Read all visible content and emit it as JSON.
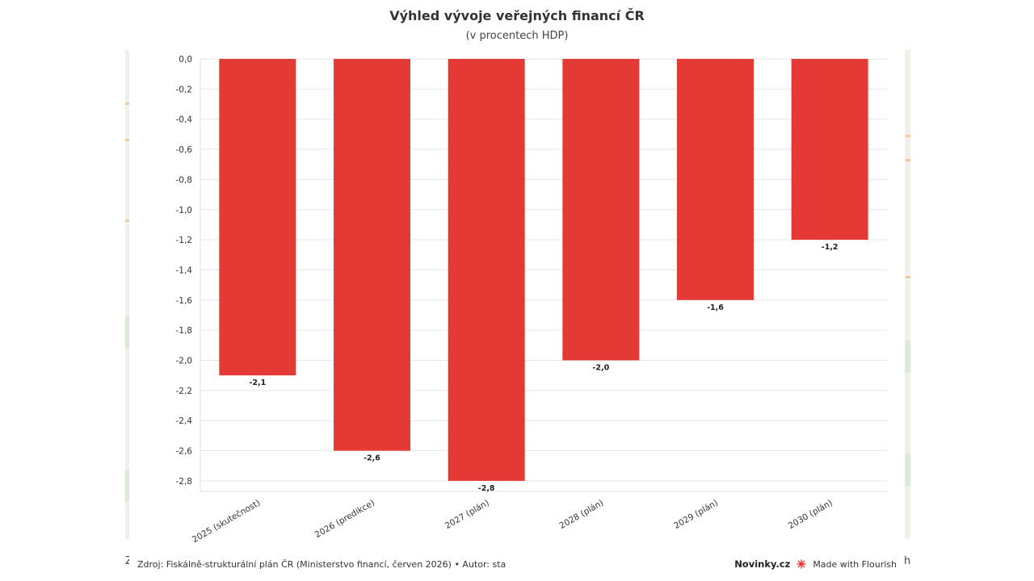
{
  "chart_data": {
    "type": "bar",
    "title": "Výhled vývoje veřejných financí ČR",
    "subtitle": "(v procentech HDP)",
    "categories": [
      "2025 (skutečnost)",
      "2026 (predikce)",
      "2027 (plán)",
      "2028 (plán)",
      "2029 (plán)",
      "2030 (plán)"
    ],
    "values": [
      -2.1,
      -2.6,
      -2.8,
      -2.0,
      -1.6,
      -1.2
    ],
    "data_labels": [
      "-2,1",
      "-2,6",
      "-2,8",
      "-2,0",
      "-1,6",
      "-1,2"
    ],
    "ylim": [
      -2.88,
      0
    ],
    "yticks": [
      0,
      -0.2,
      -0.4,
      -0.6,
      -0.8,
      -1.0,
      -1.2,
      -1.4,
      -1.6,
      -1.8,
      -2.0,
      -2.2,
      -2.4,
      -2.6,
      -2.8
    ],
    "ytick_labels": [
      "0,0",
      "-0,2",
      "-0,4",
      "-0,6",
      "-0,8",
      "-1,0",
      "-1,2",
      "-1,4",
      "-1,6",
      "-1,8",
      "-2,0",
      "-2,2",
      "-2,4",
      "-2,6",
      "-2,8"
    ],
    "xlabel": "",
    "ylabel": "",
    "grid": true,
    "bar_color": "#e53935",
    "grid_color": "#e6e6e6"
  },
  "footer": {
    "source": "Zdroj: Fiskálně-strukturální plán ČR (Ministerstvo financí, červen 2026) • Autor: sta",
    "brand": "Novinky.cz",
    "made_with": "Made with Flourish"
  },
  "background": {
    "left_edge_char": "Z",
    "right_edge_char": "h"
  },
  "icons": {
    "flourish": "flourish-logo-icon"
  }
}
